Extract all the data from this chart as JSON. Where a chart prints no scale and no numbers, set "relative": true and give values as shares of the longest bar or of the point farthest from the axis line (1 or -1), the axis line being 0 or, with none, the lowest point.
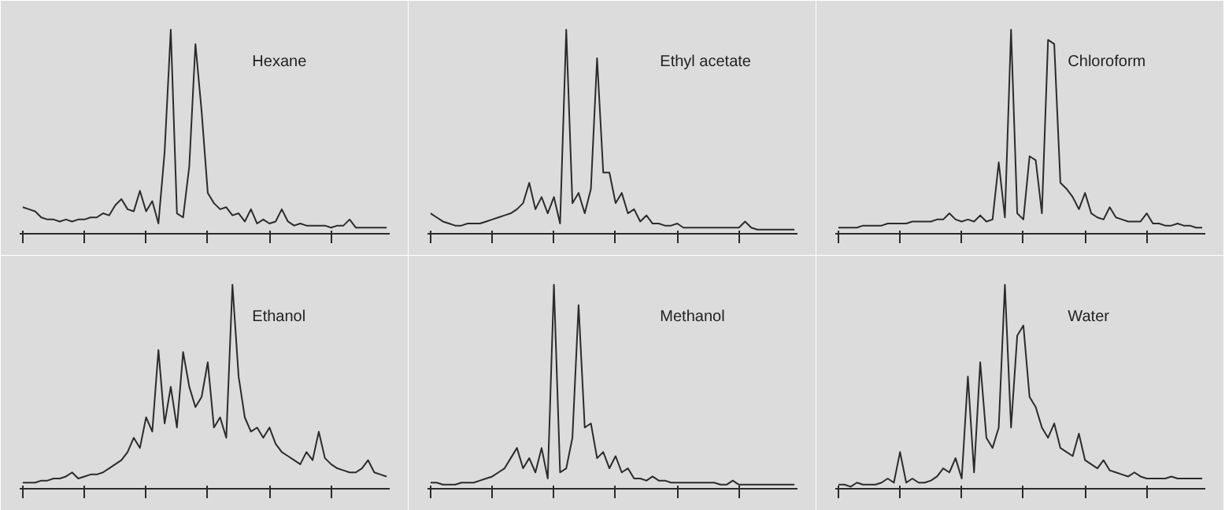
{
  "chart_data": [
    {
      "type": "line",
      "title": "Hexane",
      "relative": true,
      "color": "#2b2b2b",
      "values": [
        0.13,
        0.12,
        0.11,
        0.08,
        0.07,
        0.07,
        0.06,
        0.07,
        0.06,
        0.07,
        0.07,
        0.08,
        0.08,
        0.1,
        0.09,
        0.14,
        0.17,
        0.12,
        0.11,
        0.21,
        0.11,
        0.16,
        0.05,
        0.4,
        1.0,
        0.1,
        0.08,
        0.33,
        0.93,
        0.6,
        0.2,
        0.15,
        0.12,
        0.13,
        0.09,
        0.1,
        0.06,
        0.12,
        0.05,
        0.07,
        0.05,
        0.06,
        0.12,
        0.06,
        0.04,
        0.05,
        0.04,
        0.04,
        0.04,
        0.04,
        0.03,
        0.04,
        0.04,
        0.07,
        0.03,
        0.03,
        0.03,
        0.03,
        0.03,
        0.03
      ]
    },
    {
      "type": "line",
      "title": "Ethyl acetate",
      "relative": true,
      "color": "#2b2b2b",
      "values": [
        0.1,
        0.08,
        0.06,
        0.05,
        0.04,
        0.04,
        0.05,
        0.05,
        0.05,
        0.06,
        0.07,
        0.08,
        0.09,
        0.1,
        0.12,
        0.15,
        0.25,
        0.12,
        0.18,
        0.1,
        0.18,
        0.05,
        1.0,
        0.15,
        0.2,
        0.1,
        0.22,
        0.86,
        0.3,
        0.3,
        0.15,
        0.2,
        0.1,
        0.12,
        0.06,
        0.09,
        0.05,
        0.05,
        0.04,
        0.04,
        0.05,
        0.03,
        0.03,
        0.03,
        0.03,
        0.03,
        0.03,
        0.03,
        0.03,
        0.03,
        0.03,
        0.06,
        0.03,
        0.02,
        0.02,
        0.02,
        0.02,
        0.02,
        0.02,
        0.02
      ]
    },
    {
      "type": "line",
      "title": "Chloroform",
      "relative": true,
      "color": "#2b2b2b",
      "values": [
        0.03,
        0.03,
        0.03,
        0.03,
        0.04,
        0.04,
        0.04,
        0.04,
        0.05,
        0.05,
        0.05,
        0.05,
        0.06,
        0.06,
        0.06,
        0.06,
        0.07,
        0.07,
        0.1,
        0.07,
        0.06,
        0.07,
        0.06,
        0.09,
        0.06,
        0.07,
        0.35,
        0.08,
        1.0,
        0.1,
        0.07,
        0.38,
        0.36,
        0.1,
        0.95,
        0.93,
        0.25,
        0.22,
        0.18,
        0.12,
        0.2,
        0.1,
        0.08,
        0.07,
        0.13,
        0.08,
        0.07,
        0.06,
        0.06,
        0.06,
        0.1,
        0.05,
        0.05,
        0.04,
        0.04,
        0.05,
        0.04,
        0.04,
        0.03,
        0.03
      ]
    },
    {
      "type": "line",
      "title": "Ethanol",
      "relative": true,
      "color": "#2b2b2b",
      "values": [
        0.03,
        0.03,
        0.03,
        0.04,
        0.04,
        0.05,
        0.05,
        0.06,
        0.08,
        0.05,
        0.06,
        0.07,
        0.07,
        0.08,
        0.1,
        0.12,
        0.14,
        0.18,
        0.25,
        0.2,
        0.35,
        0.28,
        0.68,
        0.32,
        0.5,
        0.3,
        0.67,
        0.5,
        0.4,
        0.45,
        0.62,
        0.3,
        0.35,
        0.25,
        1.0,
        0.55,
        0.35,
        0.28,
        0.3,
        0.25,
        0.3,
        0.22,
        0.18,
        0.16,
        0.14,
        0.12,
        0.18,
        0.14,
        0.28,
        0.15,
        0.12,
        0.1,
        0.09,
        0.08,
        0.08,
        0.1,
        0.14,
        0.08,
        0.07,
        0.06
      ]
    },
    {
      "type": "line",
      "title": "Methanol",
      "relative": true,
      "color": "#2b2b2b",
      "values": [
        0.03,
        0.03,
        0.02,
        0.02,
        0.02,
        0.03,
        0.03,
        0.03,
        0.04,
        0.05,
        0.06,
        0.08,
        0.1,
        0.15,
        0.2,
        0.1,
        0.15,
        0.08,
        0.2,
        0.05,
        1.0,
        0.08,
        0.1,
        0.25,
        0.9,
        0.3,
        0.32,
        0.15,
        0.18,
        0.1,
        0.16,
        0.08,
        0.1,
        0.05,
        0.05,
        0.04,
        0.06,
        0.04,
        0.04,
        0.03,
        0.03,
        0.03,
        0.03,
        0.03,
        0.03,
        0.03,
        0.03,
        0.02,
        0.02,
        0.04,
        0.02,
        0.02,
        0.02,
        0.02,
        0.02,
        0.02,
        0.02,
        0.02,
        0.02,
        0.02
      ]
    },
    {
      "type": "line",
      "title": "Water",
      "relative": true,
      "color": "#2b2b2b",
      "values": [
        0.02,
        0.02,
        0.01,
        0.03,
        0.02,
        0.02,
        0.02,
        0.03,
        0.05,
        0.03,
        0.18,
        0.03,
        0.05,
        0.03,
        0.03,
        0.04,
        0.06,
        0.1,
        0.08,
        0.15,
        0.05,
        0.55,
        0.08,
        0.62,
        0.25,
        0.2,
        0.3,
        1.0,
        0.3,
        0.75,
        0.8,
        0.45,
        0.4,
        0.3,
        0.25,
        0.32,
        0.2,
        0.18,
        0.16,
        0.27,
        0.14,
        0.12,
        0.1,
        0.14,
        0.09,
        0.08,
        0.07,
        0.06,
        0.08,
        0.06,
        0.05,
        0.05,
        0.05,
        0.05,
        0.06,
        0.05,
        0.05,
        0.05,
        0.05,
        0.05
      ]
    }
  ]
}
